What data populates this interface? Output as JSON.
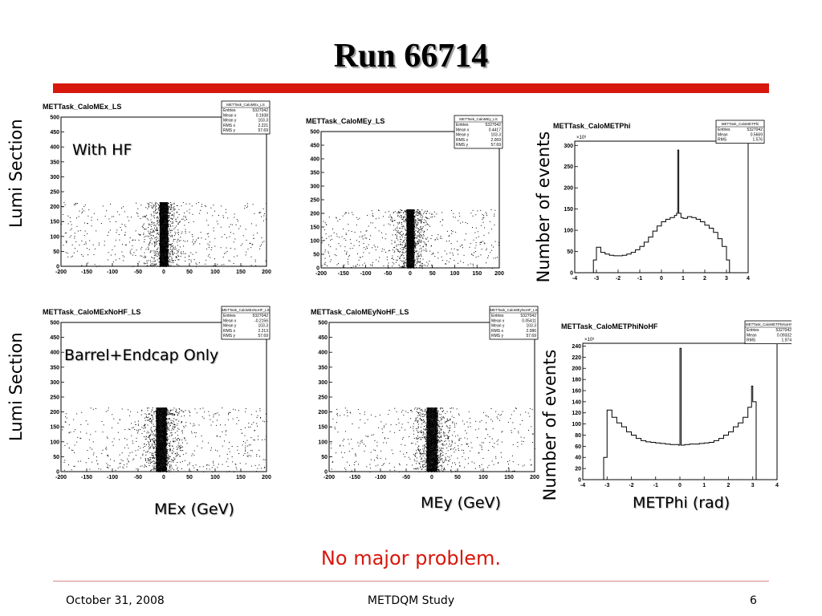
{
  "slide": {
    "title": "Run 66714",
    "conclusion": "No major problem.",
    "footer": {
      "date": "October 31, 2008",
      "center": "METDQM Study",
      "page": "6"
    },
    "labels": {
      "lumi_top": "Lumi Section",
      "lumi_bottom": "Lumi Section",
      "nev_top": "Number of events",
      "nev_bottom": "Number of events",
      "with_hf": "With HF",
      "barrel": "Barrel+Endcap Only",
      "mex": "MEx (GeV)",
      "mey": "MEy (GeV)",
      "metphi": "METPhi (rad)"
    },
    "colors": {
      "title_bar": "#d8170c",
      "conclusion": "#d8170c"
    }
  },
  "chart_data": [
    {
      "id": "p1",
      "type": "scatter",
      "title": "METTask_CaloMEx_LS",
      "xlim": [
        -200,
        200
      ],
      "ylim": [
        0,
        500
      ],
      "xticks": [
        -200,
        -150,
        -100,
        -50,
        0,
        50,
        100,
        150,
        200
      ],
      "yticks": [
        0,
        50,
        100,
        150,
        200,
        250,
        300,
        350,
        400,
        450,
        500
      ],
      "density": {
        "x_center": 0,
        "core_width": 8,
        "y_max": 215
      },
      "stats": [
        [
          "Entries",
          "5327042"
        ],
        [
          "Mean x",
          "0.1938"
        ],
        [
          "Mean y",
          "103.3"
        ],
        [
          "RMS x",
          "2.221"
        ],
        [
          "RMS y",
          "57.69"
        ]
      ]
    },
    {
      "id": "p2",
      "type": "scatter",
      "title": "METTask_CaloMEy_LS",
      "xlim": [
        -200,
        200
      ],
      "ylim": [
        0,
        500
      ],
      "xticks": [
        -200,
        -150,
        -100,
        -50,
        0,
        50,
        100,
        150,
        200
      ],
      "yticks": [
        0,
        50,
        100,
        150,
        200,
        250,
        300,
        350,
        400,
        450,
        500
      ],
      "density": {
        "x_center": 0,
        "core_width": 8,
        "y_max": 215
      },
      "stats": [
        [
          "Entries",
          "5327042"
        ],
        [
          "Mean x",
          "0.4417"
        ],
        [
          "Mean y",
          "103.3"
        ],
        [
          "RMS x",
          "2.069"
        ],
        [
          "RMS y",
          "57.69"
        ]
      ]
    },
    {
      "id": "p3",
      "type": "line",
      "title": "METTask_CaloMETPhi",
      "exponent_label": "×10³",
      "xlim": [
        -4,
        4
      ],
      "ylim": [
        0,
        310
      ],
      "xticks": [
        -4,
        -3,
        -2,
        -1,
        0,
        1,
        2,
        3,
        4
      ],
      "yticks": [
        0,
        50,
        100,
        150,
        200,
        250,
        300
      ],
      "x": [
        -3.14,
        -3.0,
        -2.8,
        -2.6,
        -2.4,
        -2.2,
        -2.0,
        -1.8,
        -1.6,
        -1.4,
        -1.2,
        -1.0,
        -0.8,
        -0.6,
        -0.4,
        -0.2,
        0.0,
        0.2,
        0.4,
        0.6,
        0.7,
        0.75,
        0.8,
        0.9,
        1.0,
        1.2,
        1.4,
        1.6,
        1.8,
        2.0,
        2.2,
        2.4,
        2.6,
        2.8,
        3.0,
        3.14
      ],
      "y": [
        30,
        60,
        48,
        44,
        41,
        40,
        40,
        41,
        44,
        48,
        54,
        62,
        72,
        84,
        98,
        110,
        120,
        126,
        130,
        135,
        140,
        289,
        140,
        130,
        128,
        132,
        130,
        126,
        120,
        112,
        105,
        95,
        80,
        62,
        30,
        0
      ],
      "stats": [
        [
          "Entries",
          "5327042"
        ],
        [
          "Mean",
          "0.5669"
        ],
        [
          "RMS",
          "1.576"
        ]
      ]
    },
    {
      "id": "p4",
      "type": "scatter",
      "title": "METTask_CaloMExNoHF_LS",
      "xlim": [
        -200,
        200
      ],
      "ylim": [
        0,
        500
      ],
      "xticks": [
        -200,
        -150,
        -100,
        -50,
        0,
        50,
        100,
        150,
        200
      ],
      "yticks": [
        0,
        50,
        100,
        150,
        200,
        250,
        300,
        350,
        400,
        450,
        500
      ],
      "density": {
        "x_center": -5,
        "core_width": 10,
        "y_max": 215
      },
      "stats": [
        [
          "Entries",
          "5327042"
        ],
        [
          "Mean x",
          "-0.2156"
        ],
        [
          "Mean y",
          "103.3"
        ],
        [
          "RMS x",
          "2.213"
        ],
        [
          "RMS y",
          "57.69"
        ]
      ]
    },
    {
      "id": "p5",
      "type": "scatter",
      "title": "METTask_CaloMEyNoHF_LS",
      "xlim": [
        -200,
        200
      ],
      "ylim": [
        0,
        500
      ],
      "xticks": [
        -200,
        -150,
        -100,
        -50,
        0,
        50,
        100,
        150,
        200
      ],
      "yticks": [
        0,
        50,
        100,
        150,
        200,
        250,
        300,
        350,
        400,
        450,
        500
      ],
      "density": {
        "x_center": 0,
        "core_width": 10,
        "y_max": 215
      },
      "stats": [
        [
          "Entries",
          "5327042"
        ],
        [
          "Mean x",
          "0.05411"
        ],
        [
          "Mean y",
          "103.3"
        ],
        [
          "RMS x",
          "2.086"
        ],
        [
          "RMS y",
          "57.69"
        ]
      ]
    },
    {
      "id": "p6",
      "type": "line",
      "title": "METTask_CaloMETPhiNoHF",
      "exponent_label": "×10³",
      "xlim": [
        -4,
        4
      ],
      "ylim": [
        0,
        245
      ],
      "xticks": [
        -4,
        -3,
        -2,
        -1,
        0,
        1,
        2,
        3,
        4
      ],
      "yticks": [
        0,
        20,
        40,
        60,
        80,
        100,
        120,
        140,
        160,
        180,
        200,
        220,
        240
      ],
      "x": [
        -3.14,
        -3.0,
        -2.8,
        -2.6,
        -2.4,
        -2.2,
        -2.0,
        -1.8,
        -1.6,
        -1.4,
        -1.2,
        -1.0,
        -0.8,
        -0.6,
        -0.4,
        -0.2,
        -0.05,
        0.0,
        0.05,
        0.2,
        0.4,
        0.6,
        0.8,
        1.0,
        1.2,
        1.4,
        1.6,
        1.8,
        2.0,
        2.2,
        2.4,
        2.6,
        2.8,
        2.95,
        3.0,
        3.14
      ],
      "y": [
        40,
        125,
        112,
        102,
        95,
        86,
        80,
        74,
        70,
        68,
        67,
        66,
        65,
        64,
        63,
        63,
        62,
        236,
        62,
        63,
        64,
        64,
        65,
        66,
        67,
        70,
        74,
        80,
        86,
        95,
        102,
        112,
        130,
        168,
        140,
        0
      ],
      "stats": [
        [
          "Entries",
          "5327042"
        ],
        [
          "Mean",
          "0.09332"
        ],
        [
          "RMS",
          "1.974"
        ]
      ]
    }
  ]
}
